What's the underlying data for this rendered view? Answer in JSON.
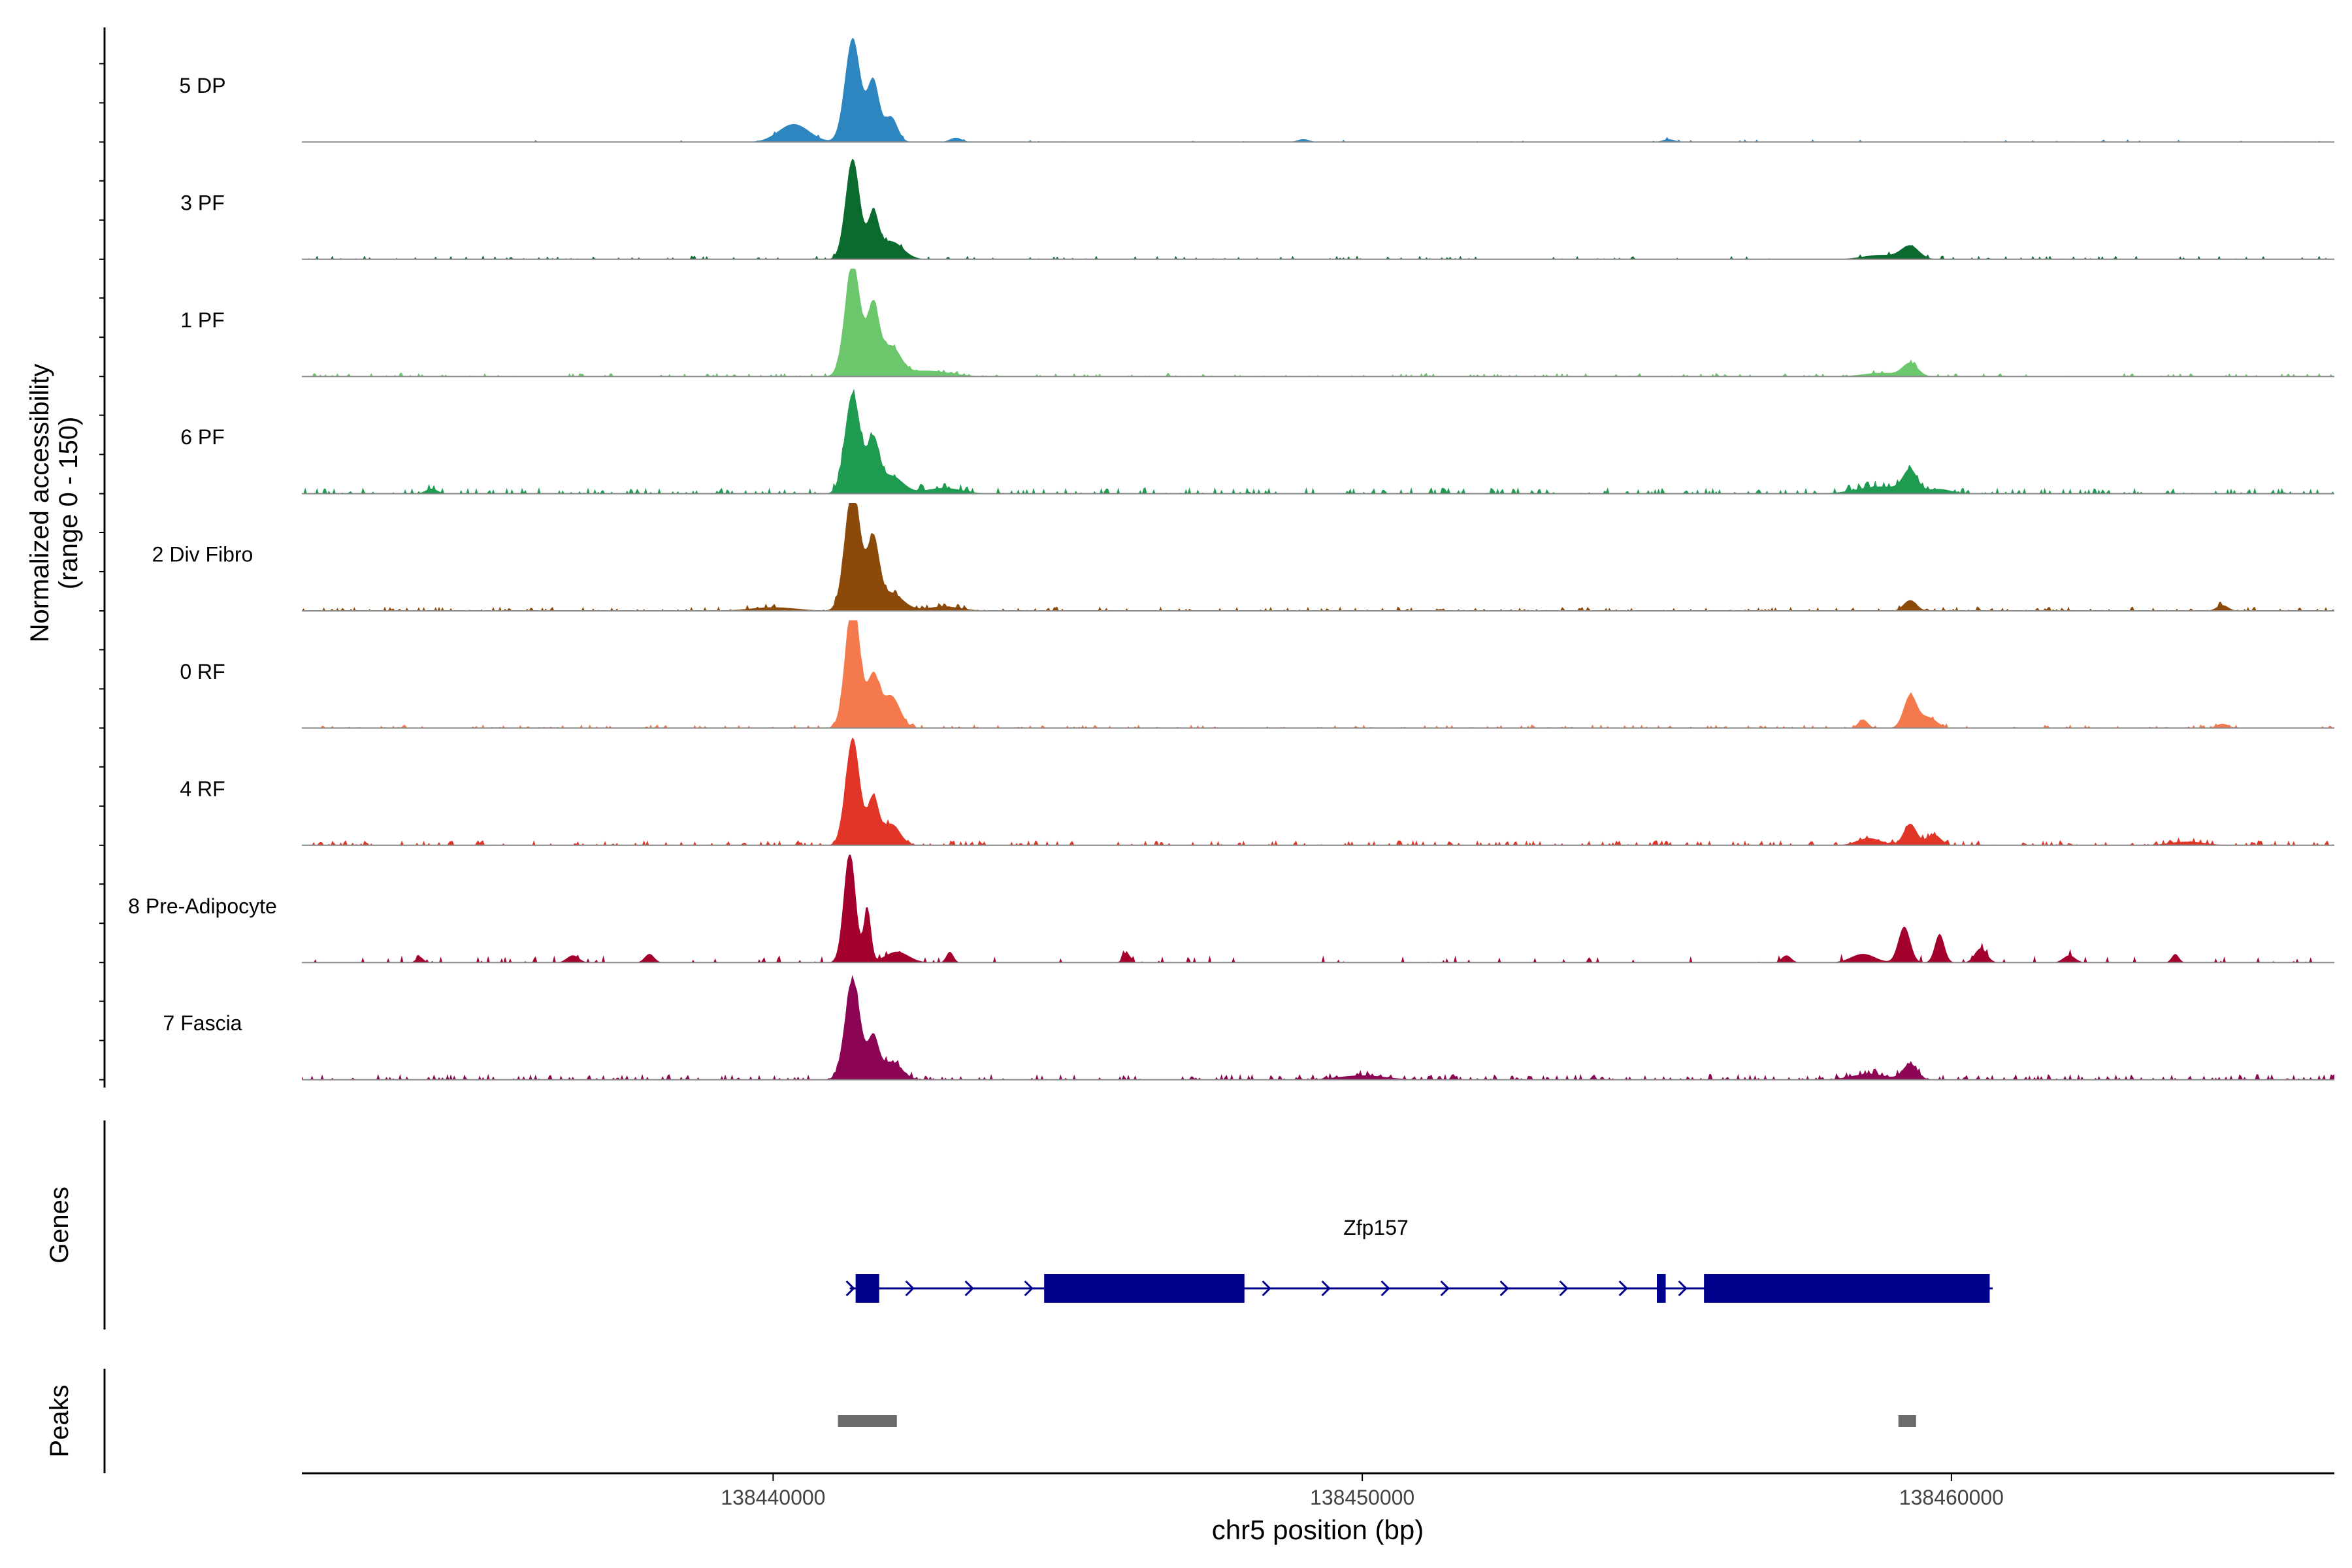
{
  "chart_data": {
    "type": "area",
    "title": "",
    "ylabel_line1": "Normalized accessibility",
    "ylabel_line2": "(range 0 - 150)",
    "ylim": [
      0,
      150
    ],
    "xlabel": "chr5 position (bp)",
    "xlim": [
      138432000,
      138466500
    ],
    "x_ticks": [
      138440000,
      138450000,
      138460000
    ],
    "x_tick_labels": [
      "138440000",
      "138450000",
      "138460000"
    ],
    "tracks": [
      {
        "name": "5 DP",
        "color": "#2E86C1",
        "peaks": [
          [
            138441350,
            145,
            130
          ],
          [
            138441700,
            85,
            100
          ],
          [
            138442000,
            35,
            110
          ],
          [
            138440350,
            25,
            260
          ],
          [
            138443100,
            6,
            100
          ],
          [
            138449000,
            4,
            100
          ],
          [
            138455200,
            4,
            100
          ]
        ],
        "noise": 4,
        "noise_prob": 0.05
      },
      {
        "name": "3 PF",
        "color": "#0B6B2E",
        "peaks": [
          [
            138441350,
            140,
            120
          ],
          [
            138441700,
            60,
            90
          ],
          [
            138442000,
            25,
            200
          ],
          [
            138459300,
            18,
            150
          ],
          [
            138458800,
            6,
            300
          ]
        ],
        "noise": 5,
        "noise_prob": 0.14
      },
      {
        "name": "1 PF",
        "color": "#6CC66C",
        "peaks": [
          [
            138441350,
            160,
            130
          ],
          [
            138441700,
            95,
            100
          ],
          [
            138442000,
            40,
            160
          ],
          [
            138442600,
            8,
            400
          ],
          [
            138459300,
            18,
            130
          ],
          [
            138458800,
            5,
            300
          ]
        ],
        "noise": 5,
        "noise_prob": 0.2
      },
      {
        "name": "6 PF",
        "color": "#1E9B50",
        "peaks": [
          [
            138441350,
            140,
            130
          ],
          [
            138441700,
            70,
            100
          ],
          [
            138442000,
            25,
            200
          ],
          [
            138442900,
            8,
            300
          ],
          [
            138459300,
            30,
            120
          ],
          [
            138458800,
            10,
            400
          ],
          [
            138459800,
            6,
            200
          ],
          [
            138434200,
            7,
            100
          ]
        ],
        "noise": 9,
        "noise_prob": 0.28
      },
      {
        "name": "2 Div Fibro",
        "color": "#8B4A0A",
        "peaks": [
          [
            138441350,
            175,
            130
          ],
          [
            138441700,
            95,
            100
          ],
          [
            138442000,
            25,
            200
          ],
          [
            138442900,
            6,
            300
          ],
          [
            138459300,
            15,
            110
          ],
          [
            138464600,
            8,
            100
          ],
          [
            138440000,
            5,
            400
          ]
        ],
        "noise": 6,
        "noise_prob": 0.22
      },
      {
        "name": "0 RF",
        "color": "#F47A4E",
        "peaks": [
          [
            138441350,
            185,
            120
          ],
          [
            138441700,
            70,
            100
          ],
          [
            138442000,
            45,
            150
          ],
          [
            138459300,
            45,
            110
          ],
          [
            138458500,
            12,
            80
          ],
          [
            138459600,
            15,
            150
          ],
          [
            138464600,
            6,
            100
          ]
        ],
        "noise": 5,
        "noise_prob": 0.2
      },
      {
        "name": "4 RF",
        "color": "#E03527",
        "peaks": [
          [
            138441350,
            150,
            120
          ],
          [
            138441700,
            65,
            90
          ],
          [
            138442000,
            30,
            150
          ],
          [
            138459300,
            30,
            110
          ],
          [
            138459700,
            15,
            120
          ],
          [
            138458600,
            10,
            200
          ],
          [
            138464000,
            5,
            300
          ]
        ],
        "noise": 7,
        "noise_prob": 0.28
      },
      {
        "name": "8 Pre-Adipocyte",
        "color": "#A3002E",
        "peaks": [
          [
            138441300,
            155,
            100
          ],
          [
            138441600,
            75,
            60
          ],
          [
            138442100,
            15,
            200
          ],
          [
            138443000,
            15,
            60
          ],
          [
            138459200,
            50,
            100
          ],
          [
            138459800,
            40,
            80
          ],
          [
            138460500,
            20,
            100
          ],
          [
            138458500,
            12,
            200
          ],
          [
            138462000,
            10,
            100
          ],
          [
            138463800,
            12,
            60
          ],
          [
            138434000,
            8,
            60
          ],
          [
            138436600,
            10,
            100
          ],
          [
            138437900,
            12,
            80
          ],
          [
            138446000,
            14,
            60
          ],
          [
            138457200,
            10,
            80
          ]
        ],
        "noise": 10,
        "noise_prob": 0.08
      },
      {
        "name": "7 Fascia",
        "color": "#8C0454",
        "peaks": [
          [
            138441350,
            140,
            130
          ],
          [
            138441700,
            55,
            90
          ],
          [
            138442000,
            25,
            180
          ],
          [
            138459300,
            22,
            120
          ],
          [
            138458600,
            8,
            300
          ],
          [
            138450000,
            6,
            400
          ]
        ],
        "noise": 8,
        "noise_prob": 0.3
      }
    ],
    "genes_label": "Genes",
    "gene": {
      "name": "Zfp157",
      "strand": "+",
      "start": 138441300,
      "end": 138460700,
      "exons": [
        [
          138441400,
          138441800
        ],
        [
          138444600,
          138448000
        ],
        [
          138455000,
          138455150
        ],
        [
          138455800,
          138460650
        ]
      ]
    },
    "peaks_label": "Peaks",
    "peak_regions": [
      [
        138441100,
        138442100
      ],
      [
        138459100,
        138459400
      ]
    ],
    "colors": {
      "axis": "#000000",
      "baseline": "#888888",
      "gene": "#00008B",
      "peak": "#6B6B6B"
    }
  }
}
